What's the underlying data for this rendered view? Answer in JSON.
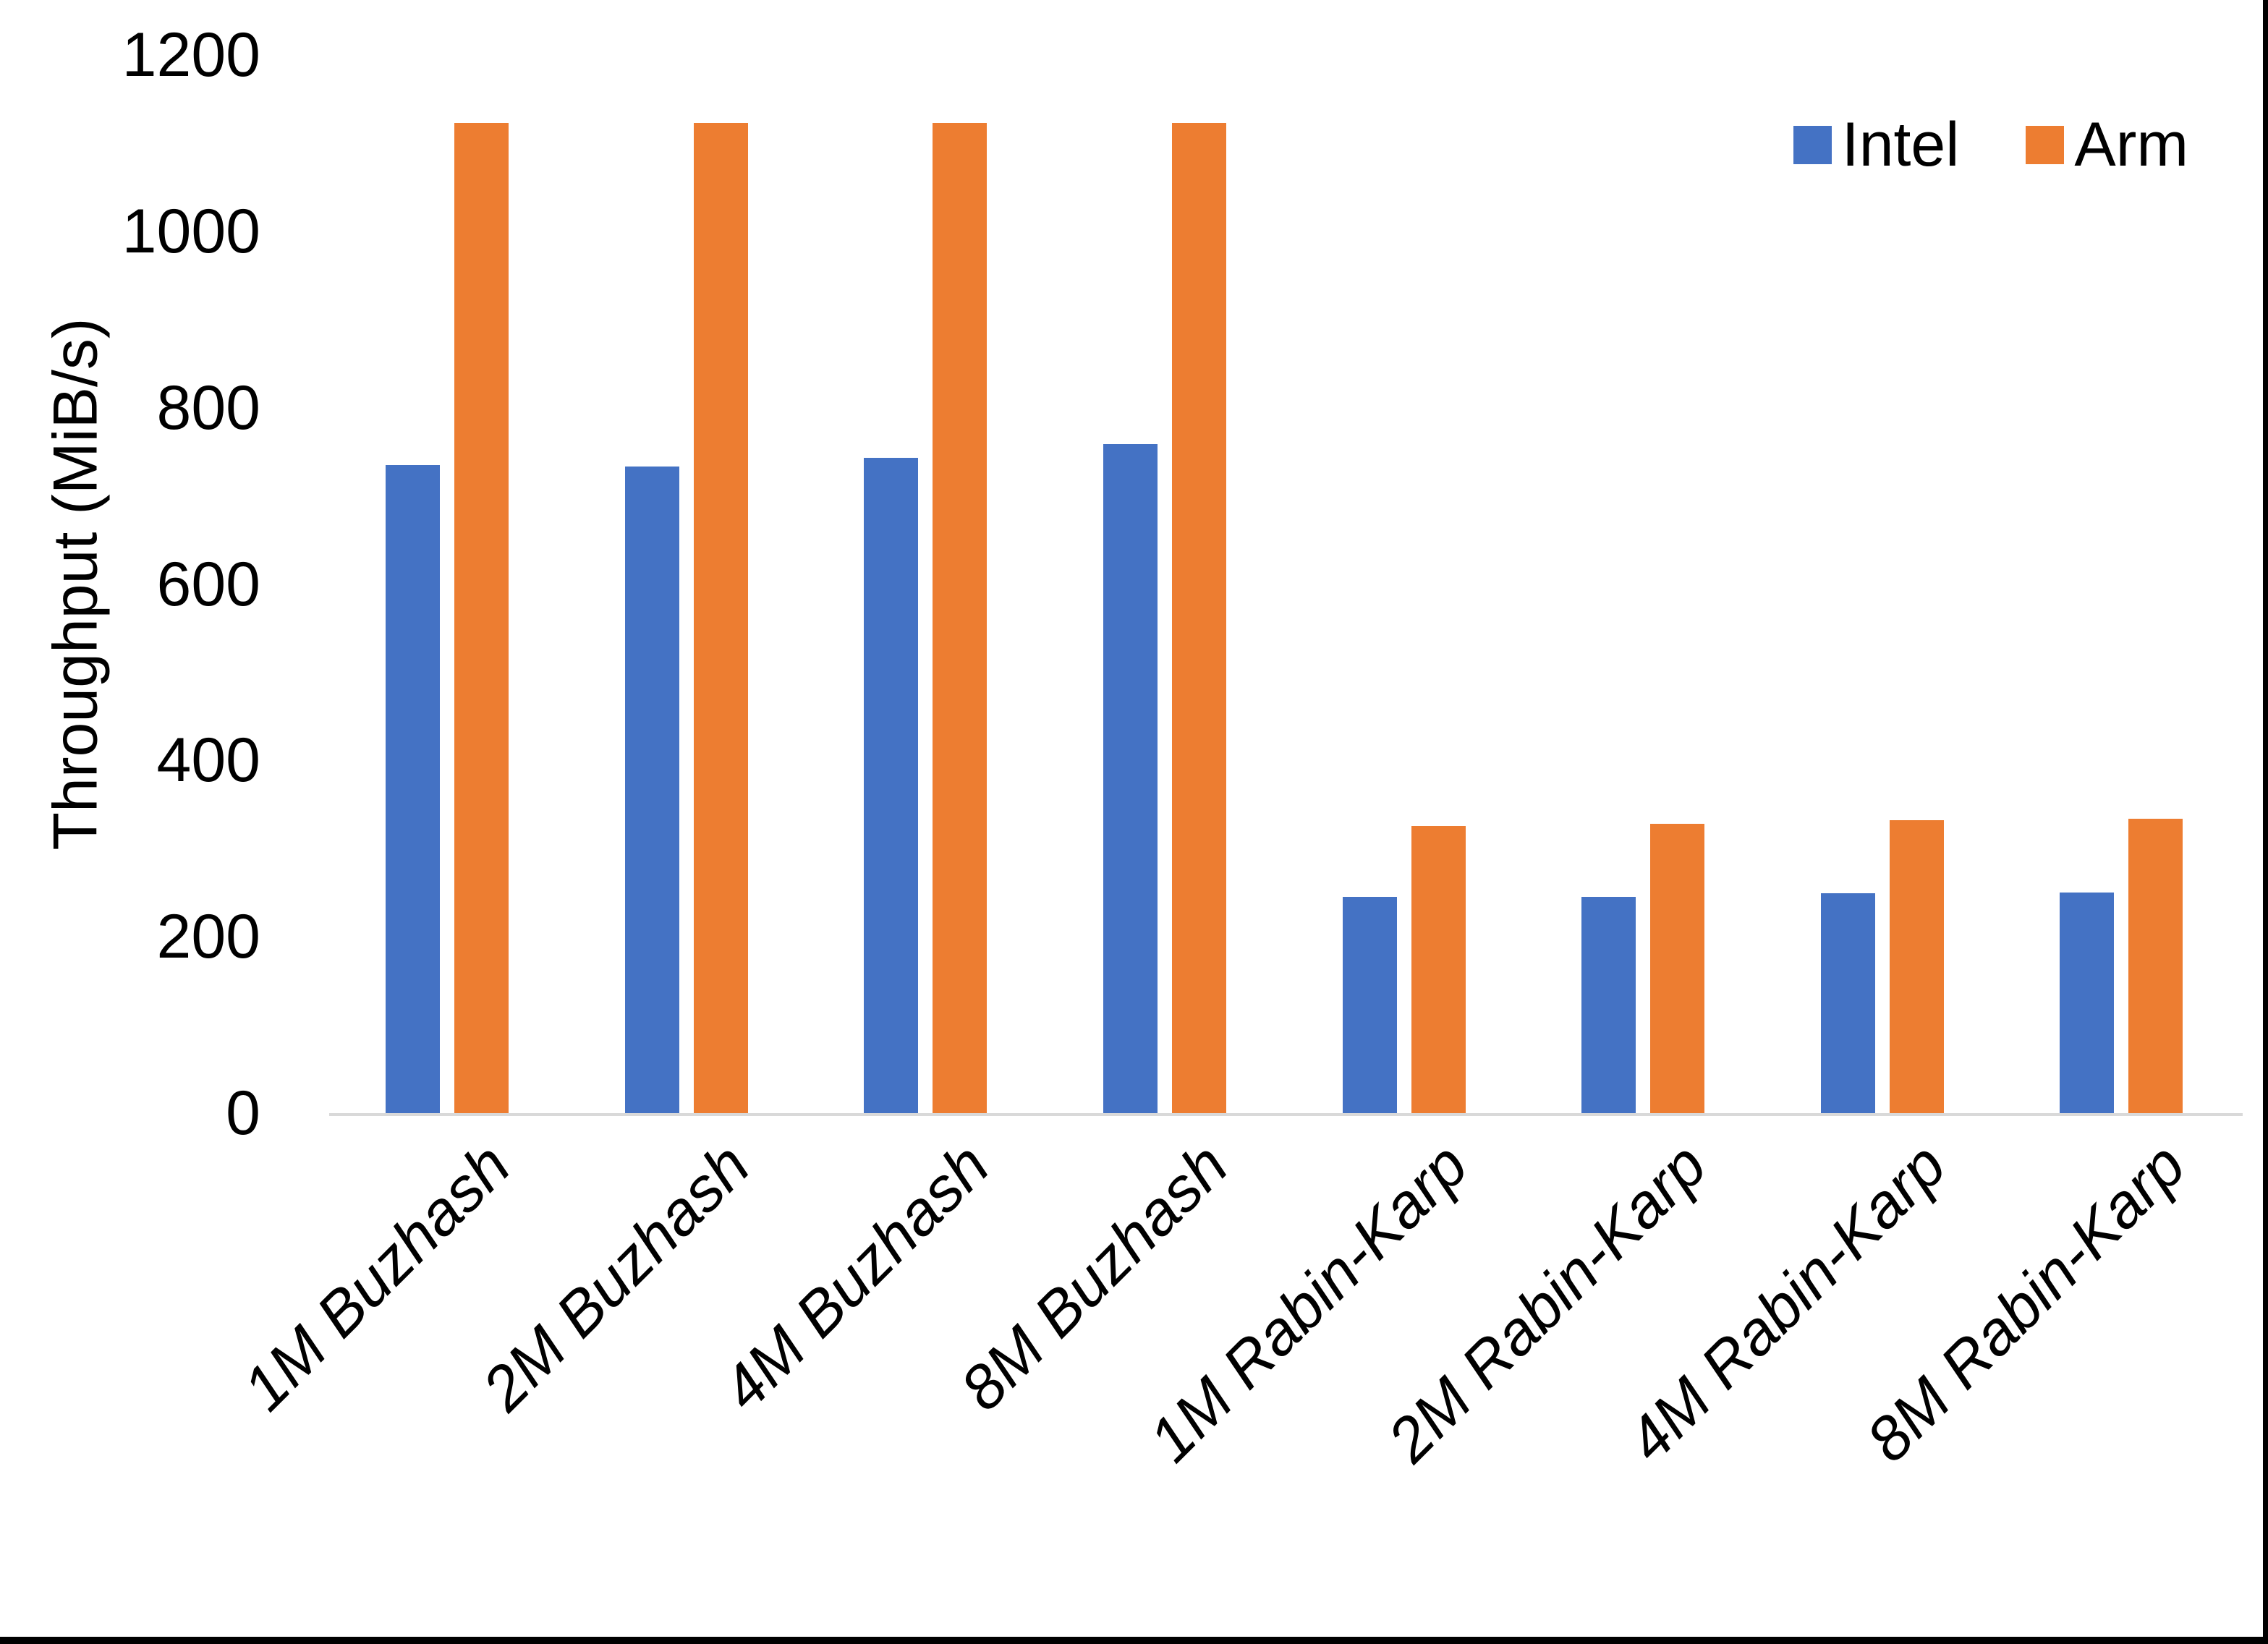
{
  "chart_data": {
    "type": "bar",
    "title": "",
    "ylabel": "Throughput (MiB/s)",
    "xlabel": "",
    "ylim": [
      0,
      1200
    ],
    "ytick_interval": 200,
    "yticks": [
      1200,
      1000,
      800,
      600,
      400,
      200,
      0
    ],
    "grid": false,
    "legend_position": "top-right",
    "categories": [
      "1M Buzhash",
      "2M Buzhash",
      "4M Buzhash",
      "8M Buzhash",
      "1M Rabin-Karp",
      "2M Rabin-Karp",
      "4M Rabin-Karp",
      "8M Rabin-Karp"
    ],
    "series": [
      {
        "name": "Intel",
        "color": "#4472C4",
        "values": [
          735,
          733,
          743,
          759,
          245,
          245,
          249,
          250
        ]
      },
      {
        "name": "Arm",
        "color": "#ED7D31",
        "values": [
          1123,
          1123,
          1123,
          1123,
          326,
          328,
          332,
          334
        ]
      }
    ]
  },
  "legend": {
    "items": [
      {
        "label": "Intel",
        "color": "#4472C4"
      },
      {
        "label": "Arm",
        "color": "#ED7D31"
      }
    ]
  },
  "axis": {
    "baseline_color": "#d9d9d9",
    "text_color": "#000000"
  }
}
